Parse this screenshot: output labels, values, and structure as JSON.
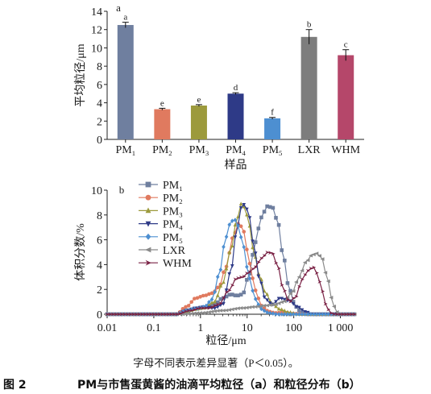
{
  "figure": {
    "caption_label": "图 2",
    "caption_text": "PM与市售蛋黄酱的油滴平均粒径（a）和粒径分布（b）",
    "note": "字母不同表示差异显著（P＜0.05）。"
  },
  "chart_data": [
    {
      "type": "bar",
      "panel": "a",
      "title": "",
      "xlabel": "样品",
      "ylabel": "平均粒径/μm",
      "ylim": [
        0,
        14
      ],
      "yticks": [
        0,
        2,
        4,
        6,
        8,
        10,
        12,
        14
      ],
      "categories": [
        {
          "base": "PM",
          "sub": "1"
        },
        {
          "base": "PM",
          "sub": "2"
        },
        {
          "base": "PM",
          "sub": "3"
        },
        {
          "base": "PM",
          "sub": "4"
        },
        {
          "base": "PM",
          "sub": "5"
        },
        {
          "base": "LXR",
          "sub": ""
        },
        {
          "base": "WHM",
          "sub": ""
        }
      ],
      "values": [
        12.5,
        3.3,
        3.7,
        5.0,
        2.3,
        11.2,
        9.2
      ],
      "errors": [
        0.3,
        0.1,
        0.1,
        0.1,
        0.1,
        0.8,
        0.6
      ],
      "letters": [
        "a",
        "e",
        "e",
        "d",
        "f",
        "b",
        "c"
      ],
      "colors": [
        "#6f7f9f",
        "#e07a5f",
        "#9c9a3c",
        "#2e3a87",
        "#4d8fd1",
        "#7d7d7d",
        "#b5476a"
      ]
    },
    {
      "type": "line",
      "panel": "b",
      "title": "",
      "xlabel": "粒径/μm",
      "ylabel": "体积分数/%",
      "xscale": "log",
      "xlim": [
        0.01,
        2000
      ],
      "ylim": [
        0,
        10
      ],
      "yticks": [
        0,
        2,
        4,
        6,
        8,
        10
      ],
      "xticks": [
        {
          "v": 0.01,
          "label": "0.01"
        },
        {
          "v": 0.1,
          "label": "0.1"
        },
        {
          "v": 1,
          "label": "1"
        },
        {
          "v": 10,
          "label": "10"
        },
        {
          "v": 100,
          "label": "100"
        },
        {
          "v": 1000,
          "label": "1 000"
        }
      ],
      "series": [
        {
          "name": "PM",
          "sub": "1",
          "color": "#6f7f9f",
          "marker": "square",
          "points": [
            [
              0.01,
              0
            ],
            [
              0.1,
              0
            ],
            [
              0.3,
              0
            ],
            [
              0.5,
              0.3
            ],
            [
              0.8,
              0.45
            ],
            [
              1.2,
              0.55
            ],
            [
              2,
              0.8
            ],
            [
              3,
              1.3
            ],
            [
              4.5,
              1.6
            ],
            [
              6,
              1.5
            ],
            [
              8,
              1.6
            ],
            [
              11,
              3.2
            ],
            [
              15,
              5.8
            ],
            [
              20,
              7.8
            ],
            [
              27,
              8.7
            ],
            [
              35,
              8.6
            ],
            [
              45,
              7.5
            ],
            [
              60,
              4.6
            ],
            [
              80,
              2.0
            ],
            [
              110,
              0.6
            ],
            [
              150,
              0.1
            ],
            [
              200,
              0
            ],
            [
              1000,
              0
            ],
            [
              2000,
              0
            ]
          ]
        },
        {
          "name": "PM",
          "sub": "2",
          "color": "#e07a5f",
          "marker": "circle",
          "points": [
            [
              0.01,
              0
            ],
            [
              0.1,
              0
            ],
            [
              0.3,
              0
            ],
            [
              0.5,
              0.6
            ],
            [
              0.8,
              1.3
            ],
            [
              1.2,
              1.5
            ],
            [
              1.8,
              1.7
            ],
            [
              2.5,
              2.2
            ],
            [
              3.5,
              3.8
            ],
            [
              5,
              6.2
            ],
            [
              6.5,
              7.3
            ],
            [
              8,
              7.0
            ],
            [
              10,
              5.2
            ],
            [
              13,
              2.9
            ],
            [
              17,
              1.3
            ],
            [
              22,
              0.5
            ],
            [
              30,
              0.2
            ],
            [
              40,
              0.1
            ],
            [
              60,
              0.15
            ],
            [
              100,
              0.05
            ],
            [
              150,
              0
            ],
            [
              2000,
              0
            ]
          ]
        },
        {
          "name": "PM",
          "sub": "3",
          "color": "#9c9a3c",
          "marker": "triangle-up",
          "points": [
            [
              0.01,
              0
            ],
            [
              0.1,
              0
            ],
            [
              0.3,
              0
            ],
            [
              0.5,
              0.2
            ],
            [
              0.8,
              0.4
            ],
            [
              1.2,
              0.5
            ],
            [
              2,
              1.0
            ],
            [
              3,
              2.5
            ],
            [
              4.5,
              5.2
            ],
            [
              6,
              7.6
            ],
            [
              7.5,
              8.9
            ],
            [
              9,
              8.6
            ],
            [
              11,
              7.2
            ],
            [
              14,
              5.0
            ],
            [
              18,
              3.2
            ],
            [
              25,
              1.7
            ],
            [
              35,
              0.8
            ],
            [
              50,
              0.4
            ],
            [
              80,
              0.15
            ],
            [
              120,
              0
            ],
            [
              2000,
              0
            ]
          ]
        },
        {
          "name": "PM",
          "sub": "4",
          "color": "#2e3a87",
          "marker": "triangle-down",
          "points": [
            [
              0.01,
              0
            ],
            [
              0.1,
              0
            ],
            [
              0.3,
              0
            ],
            [
              0.5,
              0.3
            ],
            [
              0.8,
              0.5
            ],
            [
              1.2,
              0.6
            ],
            [
              2,
              0.5
            ],
            [
              3,
              0.8
            ],
            [
              4.5,
              3.5
            ],
            [
              6,
              6.8
            ],
            [
              7.5,
              8.6
            ],
            [
              9,
              8.9
            ],
            [
              11,
              7.9
            ],
            [
              14,
              5.5
            ],
            [
              18,
              3.0
            ],
            [
              25,
              1.2
            ],
            [
              35,
              0.8
            ],
            [
              50,
              1.3
            ],
            [
              80,
              1.1
            ],
            [
              120,
              0.6
            ],
            [
              180,
              0.2
            ],
            [
              250,
              0
            ],
            [
              2000,
              0
            ]
          ]
        },
        {
          "name": "PM",
          "sub": "5",
          "color": "#4d8fd1",
          "marker": "diamond",
          "points": [
            [
              0.01,
              0
            ],
            [
              0.1,
              0
            ],
            [
              0.3,
              0
            ],
            [
              0.5,
              0.3
            ],
            [
              0.8,
              0.45
            ],
            [
              1.2,
              0.6
            ],
            [
              1.8,
              1.2
            ],
            [
              2.5,
              3.2
            ],
            [
              3.5,
              6.2
            ],
            [
              4.5,
              7.5
            ],
            [
              5.5,
              7.6
            ],
            [
              6.5,
              7.1
            ],
            [
              8,
              5.8
            ],
            [
              10,
              3.8
            ],
            [
              13,
              1.9
            ],
            [
              17,
              0.8
            ],
            [
              22,
              0.3
            ],
            [
              30,
              0.1
            ],
            [
              45,
              0
            ],
            [
              2000,
              0
            ]
          ]
        },
        {
          "name": "LXR",
          "sub": "",
          "color": "#8a8a8a",
          "marker": "triangle-left",
          "points": [
            [
              0.01,
              0
            ],
            [
              0.1,
              0
            ],
            [
              0.4,
              0
            ],
            [
              1,
              0.1
            ],
            [
              3,
              0.3
            ],
            [
              8,
              0.5
            ],
            [
              15,
              0.6
            ],
            [
              25,
              0.7
            ],
            [
              40,
              0.8
            ],
            [
              60,
              1.0
            ],
            [
              90,
              1.7
            ],
            [
              130,
              3.0
            ],
            [
              180,
              4.2
            ],
            [
              250,
              4.8
            ],
            [
              320,
              4.9
            ],
            [
              400,
              4.5
            ],
            [
              500,
              3.2
            ],
            [
              650,
              1.3
            ],
            [
              800,
              0.2
            ],
            [
              1000,
              0
            ],
            [
              2000,
              0
            ]
          ]
        },
        {
          "name": "WHM",
          "sub": "",
          "color": "#7a2245",
          "marker": "arrow-right",
          "points": [
            [
              0.01,
              0
            ],
            [
              0.1,
              0
            ],
            [
              0.3,
              0
            ],
            [
              0.6,
              0.3
            ],
            [
              1,
              0.5
            ],
            [
              1.5,
              0.5
            ],
            [
              2.5,
              0.8
            ],
            [
              4,
              1.9
            ],
            [
              6,
              2.9
            ],
            [
              8,
              3.0
            ],
            [
              11,
              3.4
            ],
            [
              15,
              3.8
            ],
            [
              20,
              4.5
            ],
            [
              28,
              5.0
            ],
            [
              35,
              4.9
            ],
            [
              45,
              3.9
            ],
            [
              60,
              2.0
            ],
            [
              80,
              1.0
            ],
            [
              110,
              1.4
            ],
            [
              150,
              2.8
            ],
            [
              200,
              3.5
            ],
            [
              260,
              3.8
            ],
            [
              320,
              3.3
            ],
            [
              400,
              1.9
            ],
            [
              500,
              0.7
            ],
            [
              600,
              0.1
            ],
            [
              800,
              0
            ],
            [
              2000,
              0
            ]
          ]
        }
      ]
    }
  ]
}
